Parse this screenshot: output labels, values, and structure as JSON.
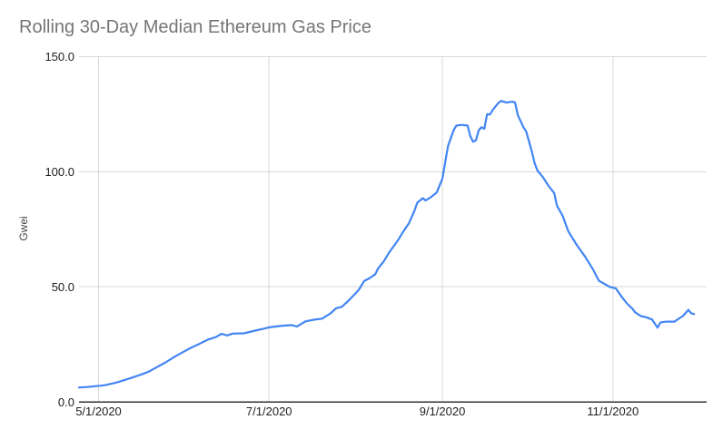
{
  "colors": {
    "background": "#ffffff",
    "title": "#757575",
    "tick_label": "#212121",
    "axis_title": "#444444",
    "gridline": "#d9d9d9",
    "axis_line": "#333333",
    "line": "#4285f4"
  },
  "chart_data": {
    "type": "line",
    "title": "Rolling 30-Day Median Ethereum Gas Price",
    "xlabel": "",
    "ylabel": "Gwei",
    "ylim": [
      0,
      150
    ],
    "grid": true,
    "legend": "none",
    "y_ticks": [
      {
        "value": 0,
        "label": "0.0"
      },
      {
        "value": 50,
        "label": "50.0"
      },
      {
        "value": 100,
        "label": "100.0"
      },
      {
        "value": 150,
        "label": "150.0"
      }
    ],
    "x_ticks": [
      {
        "date": "2020-05-01",
        "label": "5/1/2020"
      },
      {
        "date": "2020-07-01",
        "label": "7/1/2020"
      },
      {
        "date": "2020-09-01",
        "label": "9/1/2020"
      },
      {
        "date": "2020-11-01",
        "label": "11/1/2020"
      }
    ],
    "series": [
      {
        "points": [
          [
            "2020-04-24",
            6.3
          ],
          [
            "2020-04-27",
            6.5
          ],
          [
            "2020-04-30",
            6.9
          ],
          [
            "2020-05-02",
            7.1
          ],
          [
            "2020-05-04",
            7.5
          ],
          [
            "2020-05-07",
            8.3
          ],
          [
            "2020-05-10",
            9.4
          ],
          [
            "2020-05-13",
            10.6
          ],
          [
            "2020-05-16",
            11.8
          ],
          [
            "2020-05-19",
            13.2
          ],
          [
            "2020-05-22",
            15.2
          ],
          [
            "2020-05-25",
            17.2
          ],
          [
            "2020-05-28",
            19.5
          ],
          [
            "2020-05-31",
            21.5
          ],
          [
            "2020-06-03",
            23.5
          ],
          [
            "2020-06-06",
            25.2
          ],
          [
            "2020-06-09",
            27.0
          ],
          [
            "2020-06-12",
            28.2
          ],
          [
            "2020-06-14",
            29.6
          ],
          [
            "2020-06-16",
            28.9
          ],
          [
            "2020-06-18",
            29.7
          ],
          [
            "2020-06-22",
            29.8
          ],
          [
            "2020-06-26",
            31.0
          ],
          [
            "2020-06-29",
            31.8
          ],
          [
            "2020-07-01",
            32.4
          ],
          [
            "2020-07-05",
            33.0
          ],
          [
            "2020-07-09",
            33.4
          ],
          [
            "2020-07-11",
            32.8
          ],
          [
            "2020-07-14",
            35.0
          ],
          [
            "2020-07-17",
            35.7
          ],
          [
            "2020-07-20",
            36.2
          ],
          [
            "2020-07-23",
            38.5
          ],
          [
            "2020-07-25",
            40.7
          ],
          [
            "2020-07-27",
            41.3
          ],
          [
            "2020-07-29",
            43.5
          ],
          [
            "2020-07-31",
            46.0
          ],
          [
            "2020-08-02",
            48.5
          ],
          [
            "2020-08-04",
            52.5
          ],
          [
            "2020-08-06",
            53.8
          ],
          [
            "2020-08-08",
            55.5
          ],
          [
            "2020-08-09",
            58.0
          ],
          [
            "2020-08-11",
            61.0
          ],
          [
            "2020-08-13",
            65.0
          ],
          [
            "2020-08-16",
            70.0
          ],
          [
            "2020-08-18",
            74.0
          ],
          [
            "2020-08-20",
            77.5
          ],
          [
            "2020-08-22",
            83.0
          ],
          [
            "2020-08-23",
            86.5
          ],
          [
            "2020-08-25",
            88.5
          ],
          [
            "2020-08-26",
            87.5
          ],
          [
            "2020-08-28",
            89.0
          ],
          [
            "2020-08-30",
            91.0
          ],
          [
            "2020-09-01",
            97.0
          ],
          [
            "2020-09-02",
            104.0
          ],
          [
            "2020-09-03",
            111.0
          ],
          [
            "2020-09-05",
            118.0
          ],
          [
            "2020-09-06",
            120.0
          ],
          [
            "2020-09-08",
            120.3
          ],
          [
            "2020-09-10",
            120.0
          ],
          [
            "2020-09-11",
            115.4
          ],
          [
            "2020-09-12",
            113.0
          ],
          [
            "2020-09-13",
            113.6
          ],
          [
            "2020-09-14",
            118.0
          ],
          [
            "2020-09-15",
            119.3
          ],
          [
            "2020-09-16",
            118.6
          ],
          [
            "2020-09-17",
            125.0
          ],
          [
            "2020-09-18",
            124.8
          ],
          [
            "2020-09-19",
            126.8
          ],
          [
            "2020-09-21",
            129.8
          ],
          [
            "2020-09-22",
            130.7
          ],
          [
            "2020-09-24",
            130.0
          ],
          [
            "2020-09-26",
            130.4
          ],
          [
            "2020-09-27",
            130.0
          ],
          [
            "2020-09-28",
            124.5
          ],
          [
            "2020-09-30",
            119.3
          ],
          [
            "2020-10-01",
            117.4
          ],
          [
            "2020-10-03",
            108.8
          ],
          [
            "2020-10-04",
            103.7
          ],
          [
            "2020-10-05",
            100.5
          ],
          [
            "2020-10-07",
            97.5
          ],
          [
            "2020-10-09",
            93.8
          ],
          [
            "2020-10-11",
            90.7
          ],
          [
            "2020-10-12",
            85.2
          ],
          [
            "2020-10-14",
            80.9
          ],
          [
            "2020-10-16",
            74.2
          ],
          [
            "2020-10-19",
            68.3
          ],
          [
            "2020-10-22",
            63.2
          ],
          [
            "2020-10-25",
            57.3
          ],
          [
            "2020-10-27",
            52.6
          ],
          [
            "2020-10-31",
            49.9
          ],
          [
            "2020-11-02",
            49.4
          ],
          [
            "2020-11-04",
            45.9
          ],
          [
            "2020-11-06",
            42.8
          ],
          [
            "2020-11-08",
            40.5
          ],
          [
            "2020-11-09",
            38.9
          ],
          [
            "2020-11-11",
            37.3
          ],
          [
            "2020-11-13",
            36.8
          ],
          [
            "2020-11-15",
            35.8
          ],
          [
            "2020-11-17",
            32.3
          ],
          [
            "2020-11-18",
            34.5
          ],
          [
            "2020-11-20",
            34.9
          ],
          [
            "2020-11-23",
            34.9
          ],
          [
            "2020-11-26",
            37.3
          ],
          [
            "2020-11-28",
            40.0
          ],
          [
            "2020-11-29",
            38.5
          ],
          [
            "2020-11-30",
            38.2
          ]
        ]
      }
    ]
  }
}
